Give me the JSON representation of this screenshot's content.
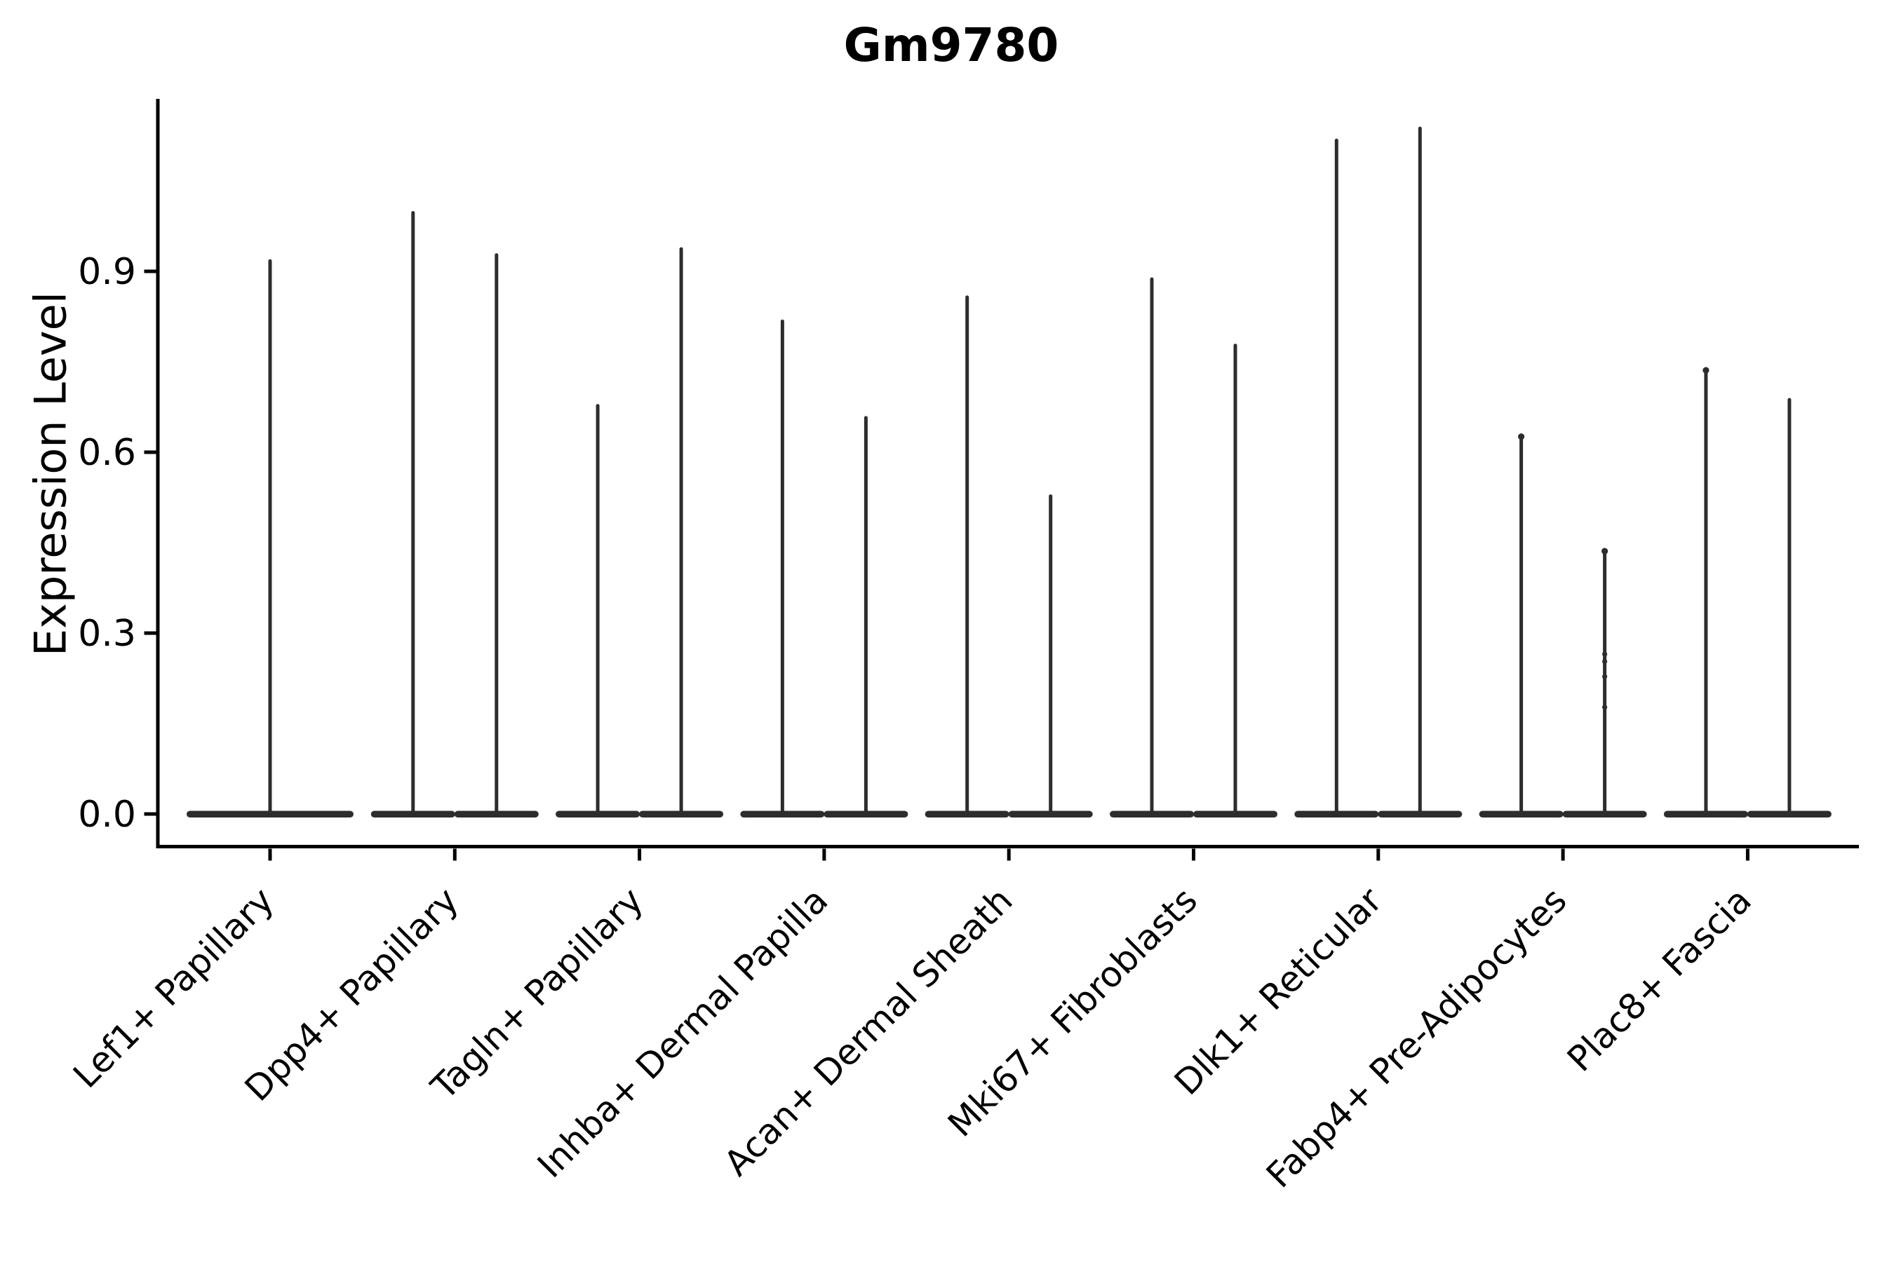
{
  "page": {
    "background": "#ffffff"
  },
  "chart_data": {
    "type": "violin",
    "title": "Gm9780",
    "ylabel": "Expression Level",
    "xlabel": "",
    "ylim": [
      0,
      1.23
    ],
    "yticks": [
      0.0,
      0.3,
      0.6,
      0.9
    ],
    "ytick_labels": [
      "0.0",
      "0.3",
      "0.6",
      "0.9"
    ],
    "grid": false,
    "legend": "none",
    "axis_color": "#000000",
    "violin_color": "#2d2d2d",
    "categories": [
      "Lef1+ Papillary",
      "Dpp4+ Papillary",
      "Tagln+ Papillary",
      "Inhba+ Dermal Papilla",
      "Acan+ Dermal Sheath",
      "Mki67+ Fibroblasts",
      "Dlk1+ Reticular",
      "Fabp4+ Pre-Adipocytes",
      "Plac8+ Fascia"
    ],
    "groups": [
      {
        "category": "Lef1+ Papillary",
        "violins": [
          {
            "pos": "center",
            "max": 0.92
          }
        ]
      },
      {
        "category": "Dpp4+ Papillary",
        "violins": [
          {
            "pos": "left",
            "max": 1.0
          },
          {
            "pos": "right",
            "max": 0.93
          }
        ]
      },
      {
        "category": "Tagln+ Papillary",
        "violins": [
          {
            "pos": "left",
            "max": 0.68
          },
          {
            "pos": "right",
            "max": 0.94
          }
        ]
      },
      {
        "category": "Inhba+ Dermal Papilla",
        "violins": [
          {
            "pos": "left",
            "max": 0.82
          },
          {
            "pos": "right",
            "max": 0.66
          }
        ]
      },
      {
        "category": "Acan+ Dermal Sheath",
        "violins": [
          {
            "pos": "left",
            "max": 0.86
          },
          {
            "pos": "right",
            "max": 0.53
          }
        ]
      },
      {
        "category": "Mki67+ Fibroblasts",
        "violins": [
          {
            "pos": "left",
            "max": 0.89
          },
          {
            "pos": "right",
            "max": 0.78
          }
        ]
      },
      {
        "category": "Dlk1+ Reticular",
        "violins": [
          {
            "pos": "left",
            "max": 1.12
          },
          {
            "pos": "right",
            "max": 1.14
          }
        ]
      },
      {
        "category": "Fabp4+ Pre-Adipocytes",
        "violins": [
          {
            "pos": "left",
            "max": 0.63,
            "cap_dot": true
          },
          {
            "pos": "right",
            "max": 0.44,
            "cap_dot": true,
            "points": [
              0.265,
              0.253,
              0.228,
              0.177
            ]
          }
        ]
      },
      {
        "category": "Plac8+ Fascia",
        "violins": [
          {
            "pos": "left",
            "max": 0.74,
            "cap_dot": true
          },
          {
            "pos": "right",
            "max": 0.69
          }
        ]
      }
    ]
  }
}
